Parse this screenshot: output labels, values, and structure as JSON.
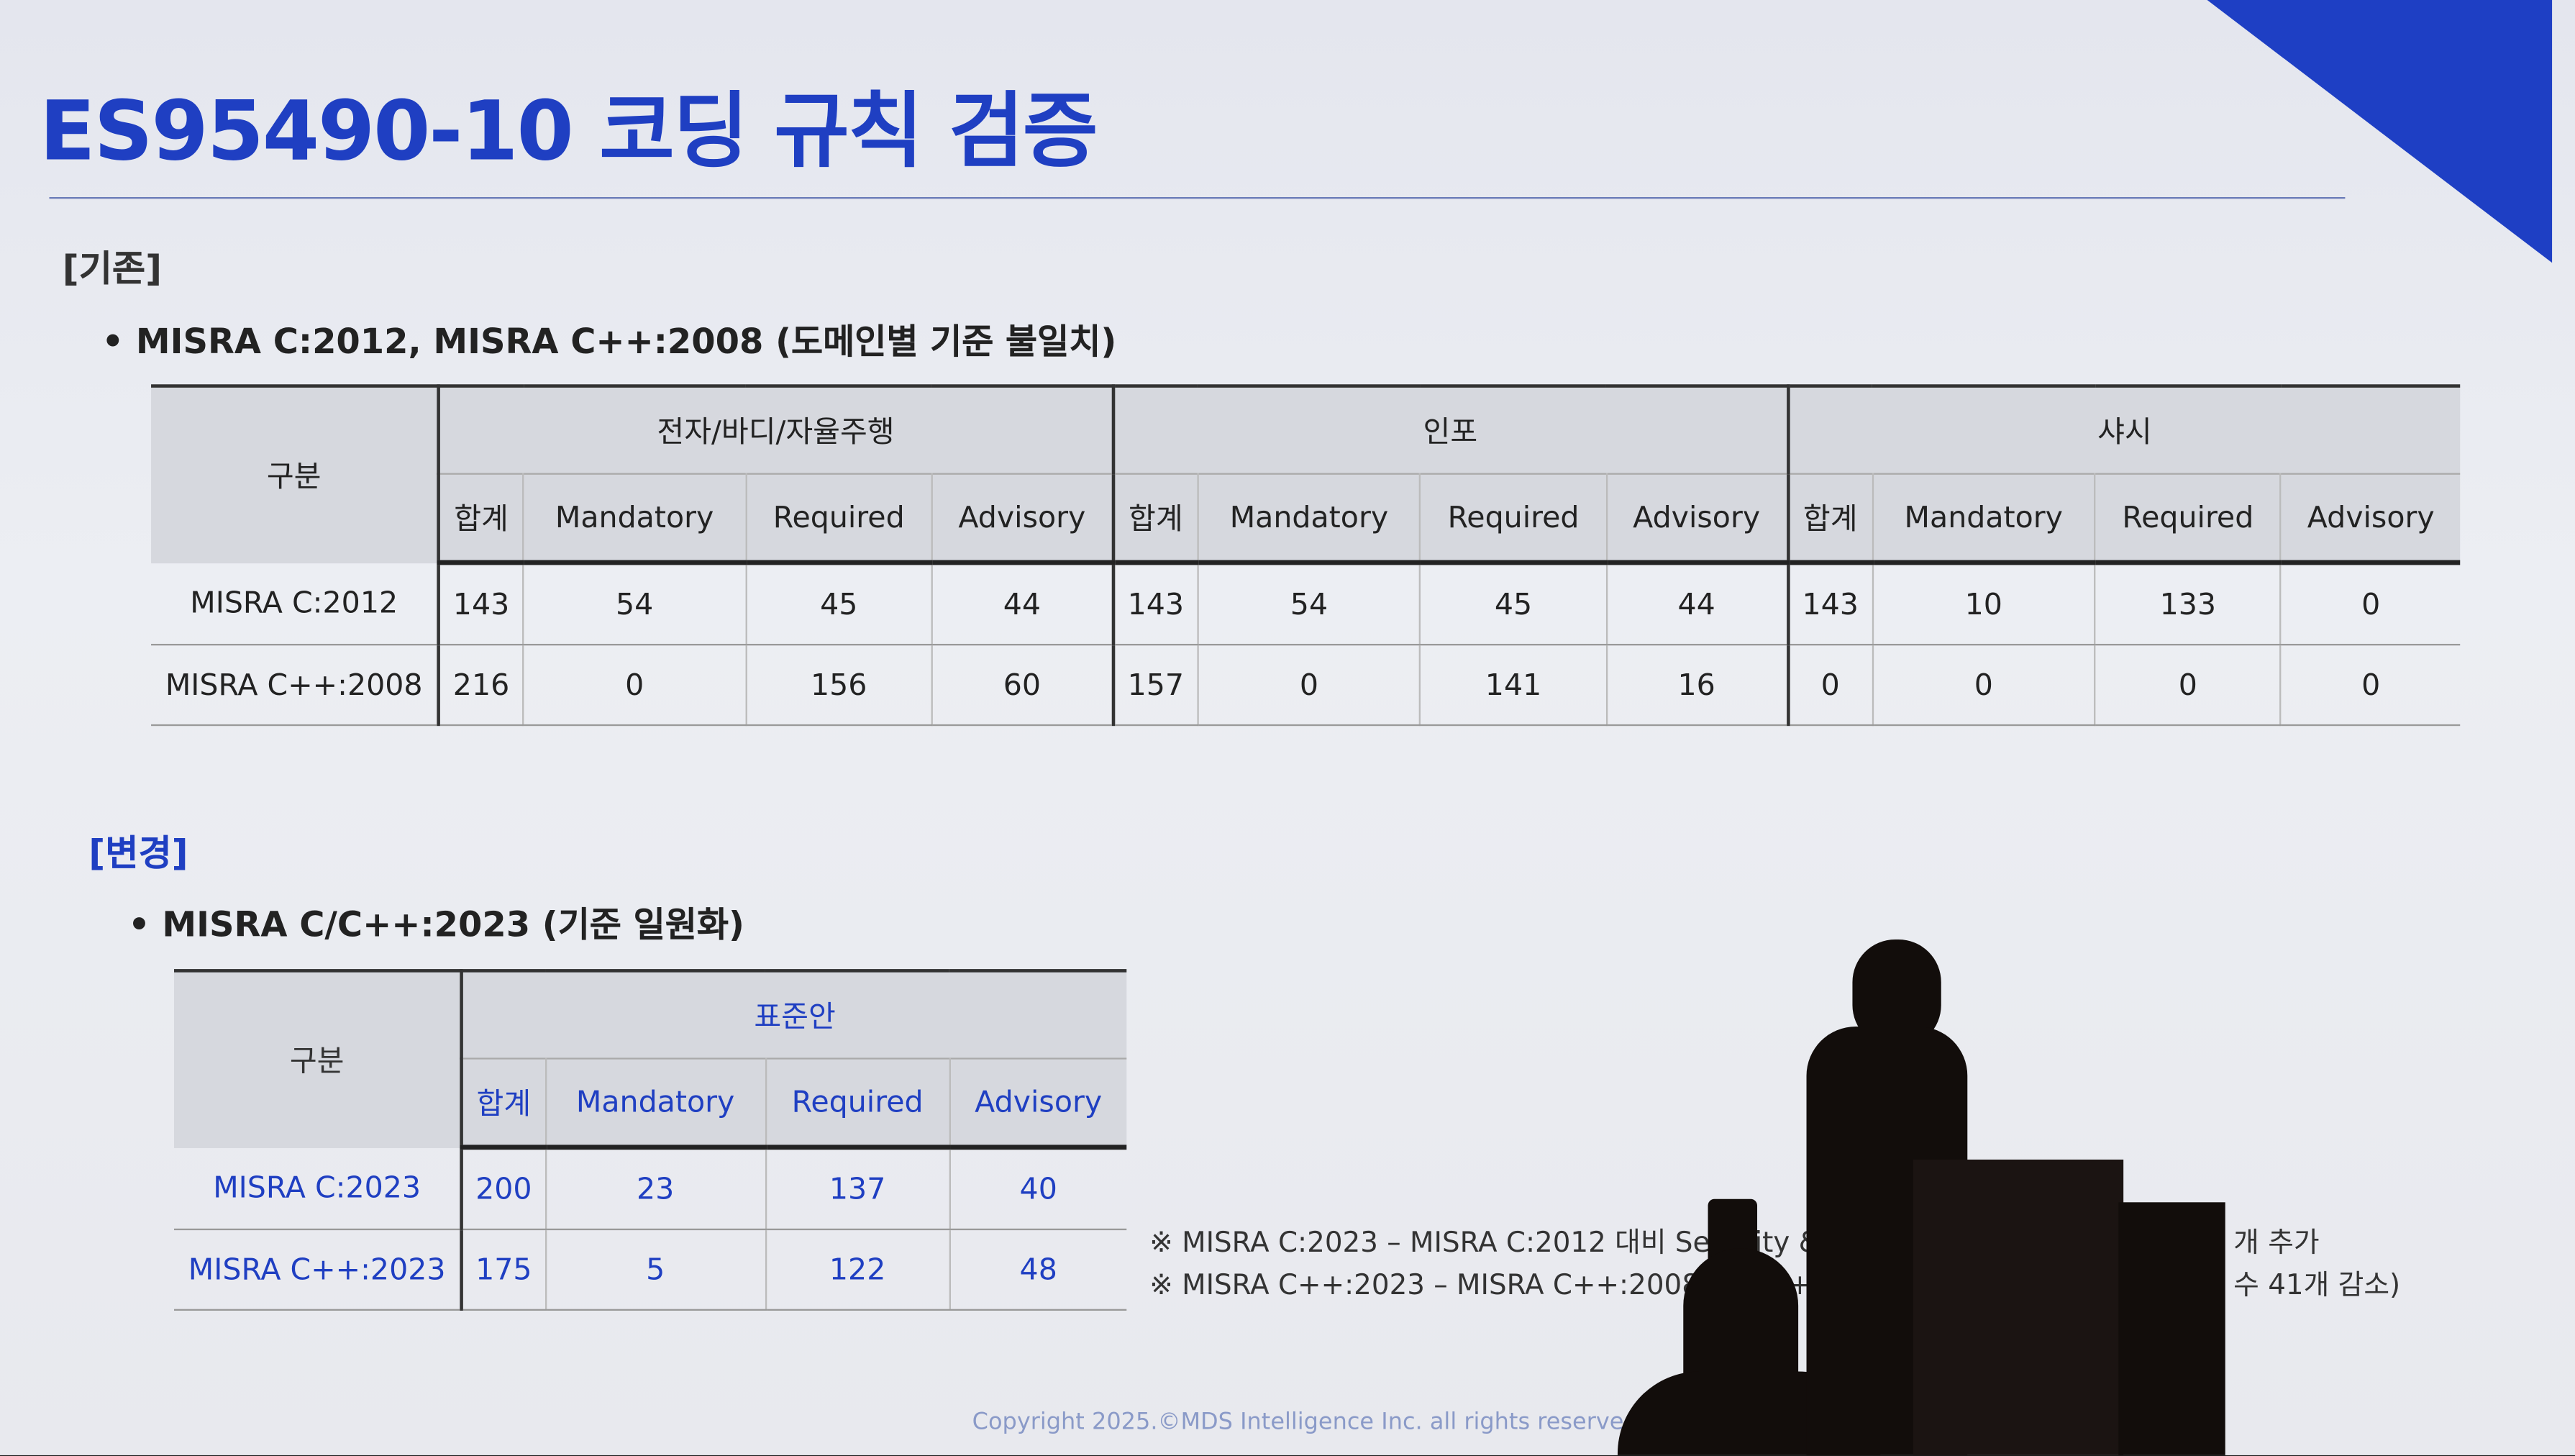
{
  "slide": {
    "title": "ES95490-10 코딩 규칙 검증",
    "before": {
      "section_label": "[기존]",
      "bullet": "MISRA C:2012, MISRA C++:2008 (도메인별 기준 불일치)",
      "table": {
        "row_header": "구분",
        "groups": [
          "전자/바디/자율주행",
          "인포",
          "샤시"
        ],
        "sub_headers": [
          "합계",
          "Mandatory",
          "Required",
          "Advisory"
        ],
        "rows": [
          {
            "label": "MISRA C:2012",
            "values": [
              "143",
              "54",
              "45",
              "44",
              "143",
              "54",
              "45",
              "44",
              "143",
              "10",
              "133",
              "0"
            ]
          },
          {
            "label": "MISRA C++:2008",
            "values": [
              "216",
              "0",
              "156",
              "60",
              "157",
              "0",
              "141",
              "16",
              "0",
              "0",
              "0",
              "0"
            ]
          }
        ]
      }
    },
    "after": {
      "section_label": "[변경]",
      "bullet": "MISRA C/C++:2023 (기준 일원화)",
      "table": {
        "row_header": "구분",
        "group": "표준안",
        "sub_headers": [
          "합계",
          "Mandatory",
          "Required",
          "Advisory"
        ],
        "rows": [
          {
            "label": "MISRA C:2023",
            "values": [
              "200",
              "23",
              "137",
              "40"
            ]
          },
          {
            "label": "MISRA C++:2023",
            "values": [
              "175",
              "5",
              "122",
              "48"
            ]
          }
        ]
      }
    },
    "notes": [
      {
        "left": "※  MISRA C:2023  –  MISRA C:2012 대비 Security & C",
        "right": "개 추가"
      },
      {
        "left": "※  MISRA C++:2023  –  MISRA C++:2008 대비 C++17 대",
        "right": "수 41개 감소)"
      }
    ],
    "copyright": "Copyright 2025.©MDS Intelligence Inc. all rights reserved.",
    "accent_color": "#1f3fc2"
  }
}
